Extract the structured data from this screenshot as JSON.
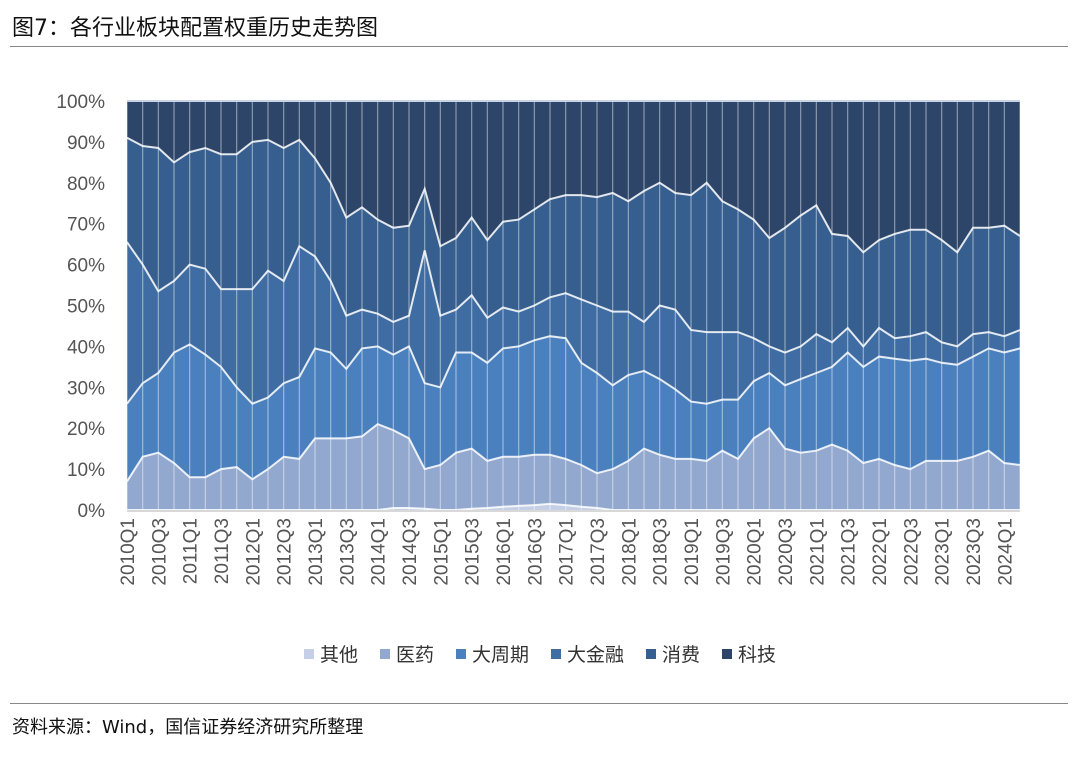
{
  "title": "图7：各行业板块配置权重历史走势图",
  "source": "资料来源：Wind，国信证券经济研究所整理",
  "chart_data": {
    "type": "area",
    "stacked": "percent",
    "title": "图7：各行业板块配置权重历史走势图",
    "xlabel": "",
    "ylabel": "",
    "ylim": [
      0,
      100
    ],
    "yticks": [
      "0%",
      "10%",
      "20%",
      "30%",
      "40%",
      "50%",
      "60%",
      "70%",
      "80%",
      "90%",
      "100%"
    ],
    "grid": "vertical",
    "legend": "bottom",
    "categories": [
      "2010Q1",
      "2010Q2",
      "2010Q3",
      "2010Q4",
      "2011Q1",
      "2011Q2",
      "2011Q3",
      "2011Q4",
      "2012Q1",
      "2012Q2",
      "2012Q3",
      "2012Q4",
      "2013Q1",
      "2013Q2",
      "2013Q3",
      "2013Q4",
      "2014Q1",
      "2014Q2",
      "2014Q3",
      "2014Q4",
      "2015Q1",
      "2015Q2",
      "2015Q3",
      "2015Q4",
      "2016Q1",
      "2016Q2",
      "2016Q3",
      "2016Q4",
      "2017Q1",
      "2017Q2",
      "2017Q3",
      "2017Q4",
      "2018Q1",
      "2018Q2",
      "2018Q3",
      "2018Q4",
      "2019Q1",
      "2019Q2",
      "2019Q3",
      "2019Q4",
      "2020Q1",
      "2020Q2",
      "2020Q3",
      "2020Q4",
      "2021Q1",
      "2021Q2",
      "2021Q3",
      "2021Q4",
      "2022Q1",
      "2022Q2",
      "2022Q3",
      "2022Q4",
      "2023Q1",
      "2023Q2",
      "2023Q3",
      "2023Q4",
      "2024Q1",
      "2024Q2"
    ],
    "series": [
      {
        "name": "其他",
        "color": "#c5cfe6",
        "values": [
          0,
          0,
          0,
          0,
          0,
          0,
          0,
          0,
          0,
          0,
          0,
          0,
          0,
          0,
          0,
          0,
          0,
          0.5,
          0.5,
          0.3,
          0,
          0,
          0.3,
          0.5,
          0.8,
          1,
          1.2,
          1.5,
          1.2,
          0.8,
          0.5,
          0,
          0,
          0,
          0,
          0,
          0,
          0,
          0,
          0,
          0,
          0,
          0,
          0,
          0,
          0,
          0,
          0,
          0,
          0,
          0,
          0,
          0,
          0,
          0,
          0,
          0,
          0
        ]
      },
      {
        "name": "医药",
        "color": "#93a8cf",
        "values": [
          7,
          13,
          14,
          11.5,
          8,
          8,
          10,
          10.5,
          7.5,
          10,
          13,
          12.5,
          17.5,
          17.5,
          17.5,
          18,
          21,
          19,
          17,
          9.7,
          11,
          14,
          14.7,
          11.5,
          12.2,
          12,
          12.3,
          12,
          11.3,
          10.2,
          8.5,
          10,
          12,
          15,
          13.5,
          12.5,
          12.5,
          12,
          14.5,
          12.5,
          17.5,
          20,
          15,
          14,
          14.5,
          16,
          14.5,
          11.5,
          12.5,
          11,
          10,
          12,
          12,
          12,
          13,
          14.5,
          11.5,
          11
        ]
      },
      {
        "name": "大周期",
        "color": "#4b80bf",
        "values": [
          19,
          18,
          19.5,
          27,
          32.5,
          30,
          25,
          19.5,
          18.5,
          17.5,
          18,
          20,
          22,
          21,
          17,
          21.5,
          19,
          18.5,
          22.5,
          21,
          19,
          24.5,
          23.5,
          24,
          26.5,
          27,
          28,
          29,
          29.5,
          25,
          24.5,
          20.5,
          21,
          19,
          18.5,
          17,
          14,
          14,
          12.5,
          14.5,
          14,
          13.5,
          15.5,
          18,
          19,
          19,
          24,
          23.5,
          25,
          26,
          26.5,
          25,
          24,
          23.5,
          24.5,
          25,
          27,
          28.5
        ]
      },
      {
        "name": "大金融",
        "color": "#3f6da3",
        "values": [
          39.5,
          29,
          20,
          17.5,
          19.5,
          21,
          19,
          24,
          28,
          31,
          25,
          32,
          22.5,
          17.5,
          13,
          9.5,
          8,
          8,
          7.5,
          32.5,
          17.5,
          10.5,
          14,
          11,
          10,
          8.5,
          8.5,
          9.5,
          11,
          15.5,
          16.5,
          18,
          15.5,
          12,
          18,
          19.5,
          17.5,
          17.5,
          16.5,
          16.5,
          10.5,
          6.5,
          8,
          8,
          9.5,
          6,
          6,
          5,
          7,
          5,
          6,
          6.5,
          5,
          4.5,
          5.5,
          4,
          4,
          4.5
        ]
      },
      {
        "name": "消费",
        "color": "#365e8e",
        "values": [
          25.5,
          29,
          35,
          29,
          27.5,
          29.5,
          33,
          33,
          36,
          32,
          32.5,
          26,
          24,
          24,
          24,
          25,
          23,
          23,
          22,
          15,
          17,
          17.5,
          19,
          19,
          21,
          22.5,
          23.5,
          24,
          24,
          25.5,
          26.5,
          29,
          27,
          32,
          30,
          28.5,
          33,
          36.5,
          32,
          30,
          29,
          26.5,
          30.5,
          32,
          31.5,
          26.5,
          22.5,
          23,
          21.5,
          25.5,
          26,
          25,
          25,
          23,
          26,
          25.5,
          27,
          23
        ]
      },
      {
        "name": "科技",
        "color": "#2c4568",
        "values": [
          9,
          11,
          11.5,
          15,
          12.5,
          11.5,
          13,
          13,
          10,
          9.5,
          11.5,
          9.5,
          14,
          20,
          28.5,
          26,
          29,
          31,
          30.5,
          21.5,
          35.5,
          33.5,
          28.5,
          34,
          29.5,
          29,
          26.5,
          24,
          23,
          23,
          23.5,
          22.5,
          24.5,
          22,
          20,
          22.5,
          23,
          20,
          24.5,
          26.5,
          29,
          33.5,
          31,
          28,
          25.5,
          32.5,
          33,
          37,
          34,
          32.5,
          31.5,
          31.5,
          34,
          37,
          31,
          31,
          30.5,
          33
        ]
      }
    ]
  }
}
